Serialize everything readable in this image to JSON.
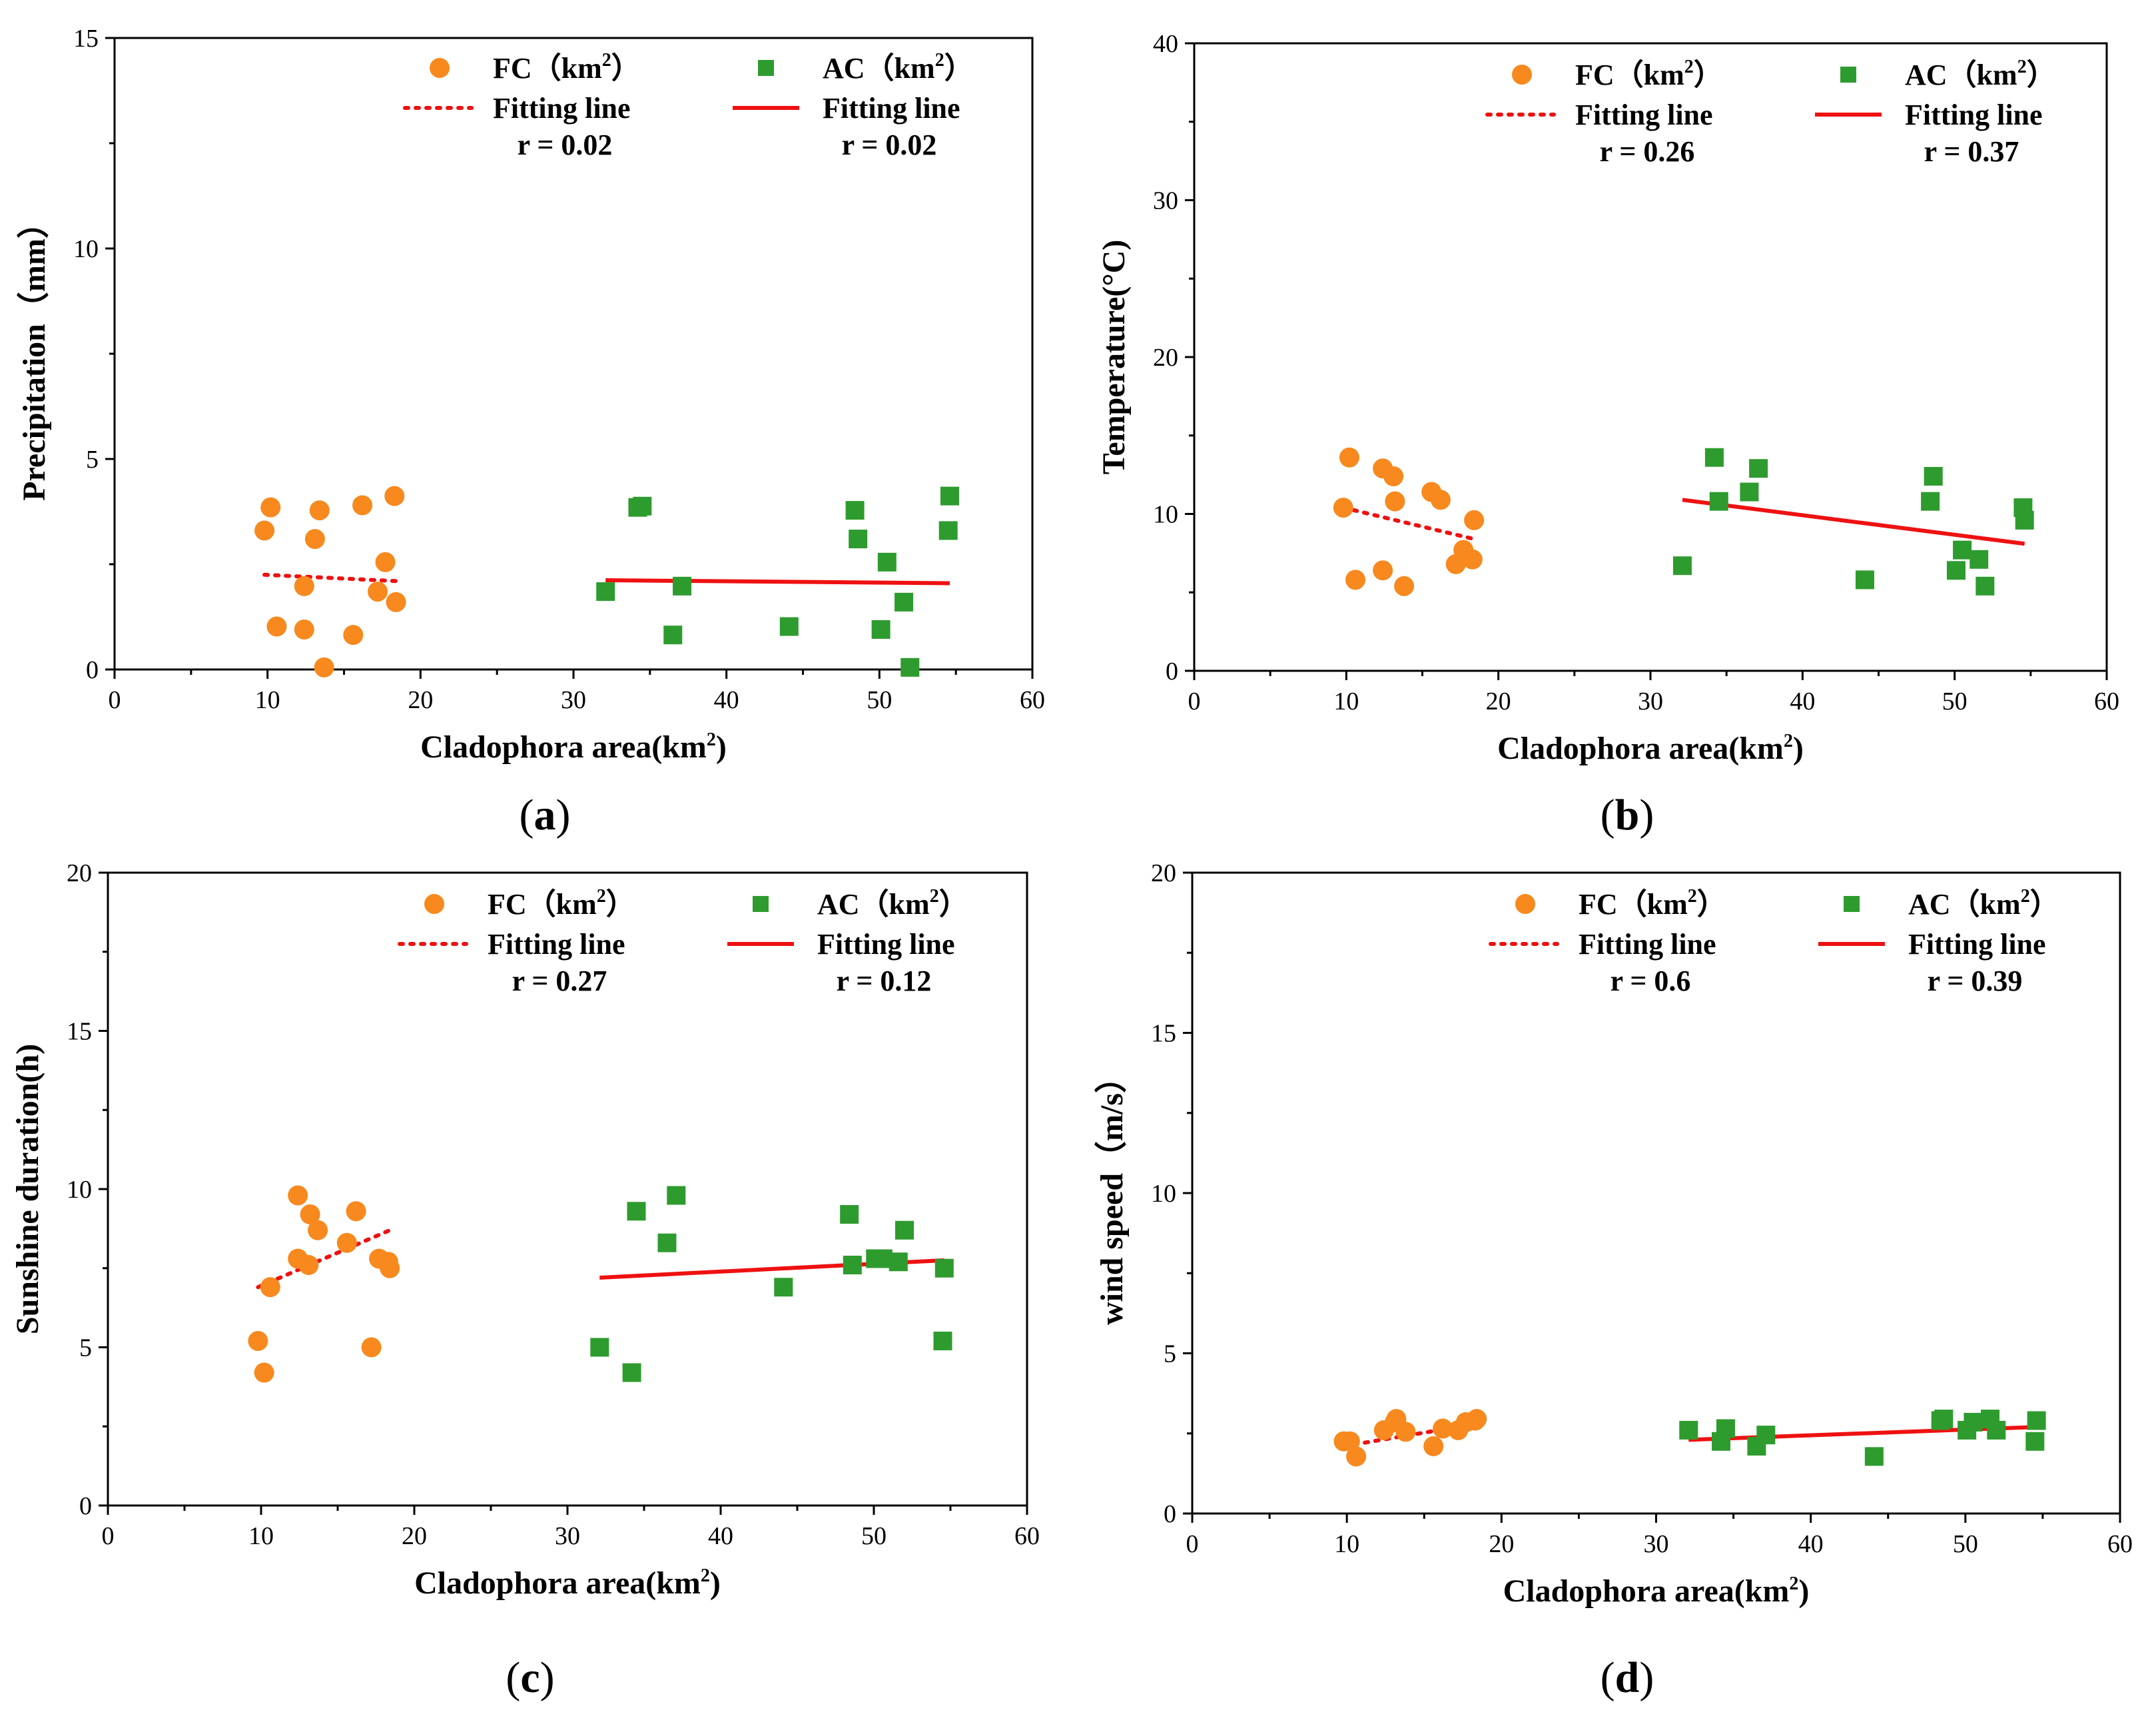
{
  "colors": {
    "fc": "#F7891E",
    "ac": "#2E9B2E",
    "fit": "#EE1111",
    "axis": "#000000"
  },
  "chart_data": [
    {
      "panel": "(a)",
      "type": "scatter",
      "xlabel": "Cladophora area(km",
      "xlabel_sup": "2",
      "xlabel_suffix": ")",
      "ylabel": "Precipitation（mm）",
      "xlim": [
        0,
        60
      ],
      "ylim": [
        0,
        15
      ],
      "xticks": [
        0,
        10,
        20,
        30,
        40,
        50,
        60
      ],
      "yticks": [
        0,
        5,
        10,
        15
      ],
      "legend": {
        "fc_label": "FC（km",
        "ac_label": "AC（km",
        "sup": "2",
        "close": "）",
        "fit_label": "Fitting line",
        "fc_r": "r = 0.02",
        "ac_r": "r = 0.02"
      },
      "series": [
        {
          "name": "FC",
          "points": [
            [
              9.8,
              3.3
            ],
            [
              10.2,
              3.85
            ],
            [
              10.6,
              1.02
            ],
            [
              12.4,
              0.95
            ],
            [
              12.4,
              1.98
            ],
            [
              13.1,
              3.1
            ],
            [
              13.4,
              3.78
            ],
            [
              13.7,
              0.05
            ],
            [
              15.6,
              0.82
            ],
            [
              16.2,
              3.9
            ],
            [
              17.2,
              1.85
            ],
            [
              17.7,
              2.55
            ],
            [
              18.3,
              4.12
            ],
            [
              18.4,
              1.6
            ]
          ]
        },
        {
          "name": "AC",
          "points": [
            [
              32.1,
              1.85
            ],
            [
              34.2,
              3.85
            ],
            [
              34.5,
              3.88
            ],
            [
              36.5,
              0.82
            ],
            [
              37.1,
              1.98
            ],
            [
              44.1,
              1.02
            ],
            [
              48.4,
              3.78
            ],
            [
              48.6,
              3.1
            ],
            [
              50.1,
              0.95
            ],
            [
              50.5,
              2.55
            ],
            [
              51.6,
              1.6
            ],
            [
              52.0,
              0.05
            ],
            [
              54.5,
              3.3
            ],
            [
              54.6,
              4.12
            ]
          ]
        }
      ],
      "fits": [
        {
          "name": "FC fitting line",
          "style": "dotted",
          "x": [
            9.8,
            18.4
          ],
          "y": [
            2.25,
            2.1
          ]
        },
        {
          "name": "AC fitting line",
          "style": "solid",
          "x": [
            32.1,
            54.6
          ],
          "y": [
            2.12,
            2.05
          ]
        }
      ]
    },
    {
      "panel": "(b)",
      "type": "scatter",
      "xlabel": "Cladophora area(km",
      "xlabel_sup": "2",
      "xlabel_suffix": ")",
      "ylabel": "Temperature(°C)",
      "xlim": [
        0,
        60
      ],
      "ylim": [
        0,
        40
      ],
      "xticks": [
        0,
        10,
        20,
        30,
        40,
        50,
        60
      ],
      "yticks": [
        0,
        10,
        20,
        30,
        40
      ],
      "legend": {
        "fc_label": "FC（km",
        "ac_label": "AC（km",
        "sup": "2",
        "close": "）",
        "fit_label": "Fitting line",
        "fc_r": "r = 0.26",
        "ac_r": "r = 0.37"
      },
      "series": [
        {
          "name": "FC",
          "points": [
            [
              9.8,
              10.4
            ],
            [
              10.2,
              13.6
            ],
            [
              10.6,
              5.8
            ],
            [
              12.4,
              6.4
            ],
            [
              12.4,
              12.9
            ],
            [
              13.1,
              12.4
            ],
            [
              13.2,
              10.8
            ],
            [
              13.8,
              5.4
            ],
            [
              15.6,
              11.4
            ],
            [
              16.2,
              10.9
            ],
            [
              17.2,
              6.8
            ],
            [
              17.7,
              7.7
            ],
            [
              18.3,
              7.1
            ],
            [
              18.4,
              9.6
            ]
          ]
        },
        {
          "name": "AC",
          "points": [
            [
              32.1,
              6.7
            ],
            [
              34.2,
              13.6
            ],
            [
              34.5,
              10.8
            ],
            [
              36.5,
              11.4
            ],
            [
              37.1,
              12.9
            ],
            [
              44.1,
              5.8
            ],
            [
              48.4,
              10.8
            ],
            [
              48.6,
              12.4
            ],
            [
              50.1,
              6.4
            ],
            [
              50.5,
              7.7
            ],
            [
              51.6,
              7.1
            ],
            [
              52.0,
              5.4
            ],
            [
              54.5,
              10.4
            ],
            [
              54.6,
              9.6
            ]
          ]
        }
      ],
      "fits": [
        {
          "name": "FC fitting line",
          "style": "dotted",
          "x": [
            9.8,
            18.4
          ],
          "y": [
            10.4,
            8.4
          ]
        },
        {
          "name": "AC fitting line",
          "style": "solid",
          "x": [
            32.1,
            54.6
          ],
          "y": [
            10.9,
            8.1
          ]
        }
      ]
    },
    {
      "panel": "(c)",
      "type": "scatter",
      "xlabel": "Cladophora area(km",
      "xlabel_sup": "2",
      "xlabel_suffix": ")",
      "ylabel": "Sunshine duration(h)",
      "xlim": [
        0,
        60
      ],
      "ylim": [
        0,
        20
      ],
      "xticks": [
        0,
        10,
        20,
        30,
        40,
        50,
        60
      ],
      "yticks": [
        0,
        5,
        10,
        15,
        20
      ],
      "legend": {
        "fc_label": "FC（km",
        "ac_label": "AC（km",
        "sup": "2",
        "close": "）",
        "fit_label": "Fitting line",
        "fc_r": "r = 0.27",
        "ac_r": "r = 0.12"
      },
      "series": [
        {
          "name": "FC",
          "points": [
            [
              9.8,
              5.2
            ],
            [
              10.2,
              4.2
            ],
            [
              10.6,
              6.9
            ],
            [
              12.4,
              9.8
            ],
            [
              12.4,
              7.8
            ],
            [
              13.1,
              7.6
            ],
            [
              13.2,
              9.2
            ],
            [
              13.7,
              8.7
            ],
            [
              15.6,
              8.3
            ],
            [
              16.2,
              9.3
            ],
            [
              17.2,
              5.0
            ],
            [
              17.7,
              7.8
            ],
            [
              18.3,
              7.7
            ],
            [
              18.4,
              7.5
            ]
          ]
        },
        {
          "name": "AC",
          "points": [
            [
              32.1,
              5.0
            ],
            [
              34.2,
              4.2
            ],
            [
              34.5,
              9.3
            ],
            [
              36.5,
              8.3
            ],
            [
              37.1,
              9.8
            ],
            [
              44.1,
              6.9
            ],
            [
              48.4,
              9.2
            ],
            [
              48.6,
              7.6
            ],
            [
              50.1,
              7.8
            ],
            [
              50.6,
              7.8
            ],
            [
              51.6,
              7.7
            ],
            [
              52.0,
              8.7
            ],
            [
              54.5,
              5.2
            ],
            [
              54.6,
              7.5
            ]
          ]
        }
      ],
      "fits": [
        {
          "name": "FC fitting line",
          "style": "dotted",
          "x": [
            9.8,
            18.4
          ],
          "y": [
            6.9,
            8.7
          ]
        },
        {
          "name": "AC fitting line",
          "style": "solid",
          "x": [
            32.1,
            54.6
          ],
          "y": [
            7.2,
            7.75
          ]
        }
      ]
    },
    {
      "panel": "(d)",
      "type": "scatter",
      "xlabel": "Cladophora area(km",
      "xlabel_sup": "2",
      "xlabel_suffix": ")",
      "ylabel": "wind speed（m/s）",
      "xlim": [
        0,
        60
      ],
      "ylim": [
        0,
        20
      ],
      "xticks": [
        0,
        10,
        20,
        30,
        40,
        50,
        60
      ],
      "yticks": [
        0,
        5,
        10,
        15,
        20
      ],
      "legend": {
        "fc_label": "FC（km",
        "ac_label": "AC（km",
        "sup": "2",
        "close": "）",
        "fit_label": "Fitting line",
        "fc_r": "r = 0.6",
        "ac_r": "r = 0.39"
      },
      "series": [
        {
          "name": "FC",
          "points": [
            [
              9.8,
              2.25
            ],
            [
              10.2,
              2.25
            ],
            [
              10.6,
              1.78
            ],
            [
              12.4,
              2.6
            ],
            [
              13.1,
              2.85
            ],
            [
              13.2,
              2.95
            ],
            [
              13.8,
              2.55
            ],
            [
              15.6,
              2.1
            ],
            [
              16.2,
              2.65
            ],
            [
              17.2,
              2.6
            ],
            [
              17.7,
              2.85
            ],
            [
              18.3,
              2.9
            ],
            [
              18.4,
              2.95
            ]
          ]
        },
        {
          "name": "AC",
          "points": [
            [
              32.1,
              2.6
            ],
            [
              34.2,
              2.25
            ],
            [
              34.5,
              2.65
            ],
            [
              36.5,
              2.1
            ],
            [
              37.1,
              2.45
            ],
            [
              44.1,
              1.78
            ],
            [
              48.4,
              2.9
            ],
            [
              48.6,
              2.95
            ],
            [
              50.1,
              2.6
            ],
            [
              50.5,
              2.85
            ],
            [
              51.6,
              2.95
            ],
            [
              52.0,
              2.6
            ],
            [
              54.5,
              2.25
            ],
            [
              54.6,
              2.9
            ]
          ]
        }
      ],
      "fits": [
        {
          "name": "FC fitting line",
          "style": "dotted",
          "x": [
            9.8,
            18.4
          ],
          "y": [
            2.1,
            2.8
          ]
        },
        {
          "name": "AC fitting line",
          "style": "solid",
          "x": [
            32.1,
            54.6
          ],
          "y": [
            2.3,
            2.7
          ]
        }
      ]
    }
  ]
}
